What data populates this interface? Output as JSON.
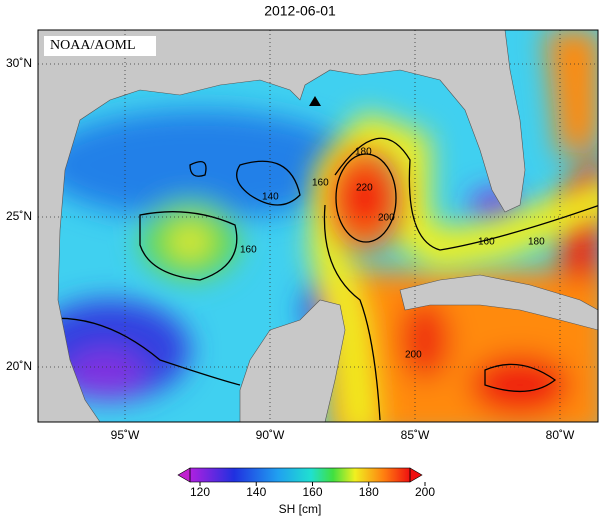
{
  "map": {
    "title": "2012-06-01",
    "credit": "NOAA/AOML",
    "lat_labels": [
      "30˚N",
      "25˚N",
      "20˚N"
    ],
    "lon_labels": [
      "95˚W",
      "90˚W",
      "85˚W",
      "80˚W"
    ],
    "contour_labels": [
      "140",
      "160",
      "180",
      "220",
      "200",
      "160",
      "180",
      "160",
      "200"
    ]
  },
  "colorbar": {
    "ticks": [
      120,
      140,
      160,
      180,
      200
    ],
    "label": "SH [cm]"
  }
}
